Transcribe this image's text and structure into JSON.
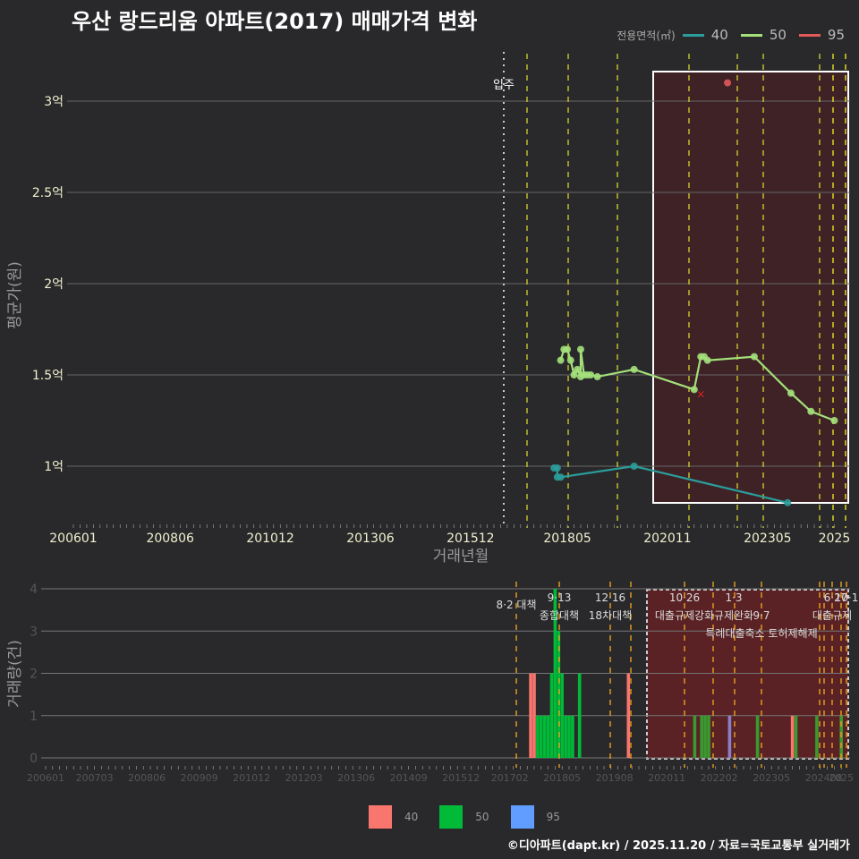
{
  "title": "우산 랑드리움 아파트(2017) 매매가격 변화",
  "footer": "©디아파트(dapt.kr) / 2025.11.20 / 자료=국토교통부 실거래가",
  "legend_top": {
    "title": "전용면적(㎡)",
    "items": [
      {
        "label": "40",
        "color": "#2a9d9a"
      },
      {
        "label": "50",
        "color": "#a3e07a"
      },
      {
        "label": "95",
        "color": "#e05a5a"
      }
    ]
  },
  "legend_bottom": {
    "items": [
      {
        "label": "40",
        "color": "#f8766d"
      },
      {
        "label": "50",
        "color": "#00ba38"
      },
      {
        "label": "95",
        "color": "#619cff"
      }
    ]
  },
  "chart_data": [
    {
      "type": "line",
      "title": "우산 랑드리움 아파트(2017) 매매가격 변화",
      "xlabel": "거래년월",
      "ylabel": "평균가(원)",
      "x_ticks": [
        "200601",
        "200806",
        "201012",
        "201306",
        "201512",
        "201805",
        "202011",
        "202305",
        "2025"
      ],
      "y_ticks": [
        "1억",
        "1.5억",
        "2억",
        "2.5억",
        "3억"
      ],
      "ylim": [
        0.85,
        3.1
      ],
      "annotation": "입주",
      "series": [
        {
          "name": "40",
          "color": "#2a9d9a",
          "points": [
            [
              "201801",
              0.99
            ],
            [
              "201802",
              0.99
            ],
            [
              "201802",
              0.94
            ],
            [
              "201803",
              0.94
            ],
            [
              "202001",
              1.0
            ],
            [
              "202311",
              0.8
            ]
          ]
        },
        {
          "name": "50",
          "color": "#a3e07a",
          "points": [
            [
              "201803",
              1.58
            ],
            [
              "201804",
              1.64
            ],
            [
              "201805",
              1.64
            ],
            [
              "201806",
              1.58
            ],
            [
              "201807",
              1.5
            ],
            [
              "201808",
              1.53
            ],
            [
              "201809",
              1.49
            ],
            [
              "201809",
              1.64
            ],
            [
              "201810",
              1.5
            ],
            [
              "201811",
              1.5
            ],
            [
              "201812",
              1.5
            ],
            [
              "201902",
              1.49
            ],
            [
              "202001",
              1.53
            ],
            [
              "202107",
              1.42
            ],
            [
              "202109",
              1.6
            ],
            [
              "202110",
              1.6
            ],
            [
              "202111",
              1.58
            ],
            [
              "202301",
              1.6
            ],
            [
              "202312",
              1.4
            ],
            [
              "202406",
              1.3
            ],
            [
              "202501",
              1.25
            ]
          ]
        },
        {
          "name": "95",
          "color": "#e05a5a",
          "points": [
            [
              "202205",
              3.1
            ],
            [
              "202109",
              1.4
            ]
          ]
        }
      ]
    },
    {
      "type": "bar",
      "xlabel": "",
      "ylabel": "거래량(건)",
      "y_ticks": [
        0,
        1,
        2,
        3,
        4
      ],
      "x_ticks": [
        "200601",
        "200703",
        "200806",
        "200909",
        "201012",
        "201203",
        "201306",
        "201409",
        "201512",
        "201702",
        "201805",
        "201908",
        "202011",
        "202202",
        "202305",
        "202408",
        "2025"
      ],
      "policy_labels": [
        "8·2 대책",
        "9·13 종합대책",
        "12·16 18차대책",
        "10·26 대출규제강화",
        "1·3 규제완화",
        "9·7 특례대출축소",
        "6·27 대출규제",
        "10·1 토허제해제"
      ],
      "bars": [
        {
          "month": "201708",
          "series": "40",
          "value": 2
        },
        {
          "month": "201709",
          "series": "40",
          "value": 2
        },
        {
          "month": "201710",
          "series": "50",
          "value": 1
        },
        {
          "month": "201711",
          "series": "50",
          "value": 1
        },
        {
          "month": "201712",
          "series": "50",
          "value": 1
        },
        {
          "month": "201801",
          "series": "50",
          "value": 1
        },
        {
          "month": "201802",
          "series": "50",
          "value": 2
        },
        {
          "month": "201803",
          "series": "50",
          "value": 4
        },
        {
          "month": "201804",
          "series": "50",
          "value": 3
        },
        {
          "month": "201805",
          "series": "50",
          "value": 2
        },
        {
          "month": "201806",
          "series": "50",
          "value": 1
        },
        {
          "month": "201807",
          "series": "50",
          "value": 1
        },
        {
          "month": "201808",
          "series": "50",
          "value": 1
        },
        {
          "month": "201810",
          "series": "50",
          "value": 2
        },
        {
          "month": "201912",
          "series": "40",
          "value": 2
        },
        {
          "month": "202107",
          "series": "50",
          "value": 1
        },
        {
          "month": "202109",
          "series": "50",
          "value": 1
        },
        {
          "month": "202110",
          "series": "50",
          "value": 1
        },
        {
          "month": "202111",
          "series": "50",
          "value": 1
        },
        {
          "month": "202205",
          "series": "95",
          "value": 1
        },
        {
          "month": "202301",
          "series": "50",
          "value": 1
        },
        {
          "month": "202311",
          "series": "40",
          "value": 1
        },
        {
          "month": "202312",
          "series": "50",
          "value": 1
        },
        {
          "month": "202406",
          "series": "50",
          "value": 1
        },
        {
          "month": "202501",
          "series": "50",
          "value": 1
        }
      ]
    }
  ]
}
